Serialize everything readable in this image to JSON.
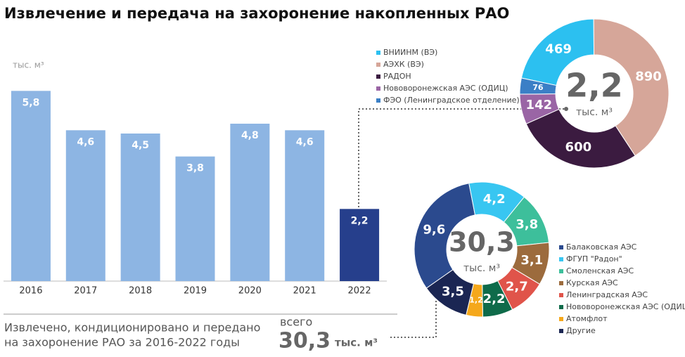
{
  "title": "Извлечение и передача на захоронение накопленных РАО",
  "chart_data": [
    {
      "type": "bar",
      "y_unit": "тыс. м³",
      "categories": [
        "2016",
        "2017",
        "2018",
        "2019",
        "2020",
        "2021",
        "2022"
      ],
      "values": [
        5.8,
        4.6,
        4.5,
        3.8,
        4.8,
        4.6,
        2.2
      ],
      "value_labels": [
        "5,8",
        "4,6",
        "4,5",
        "3,8",
        "4,8",
        "4,6",
        "2,2"
      ],
      "colors": [
        "#8db5e3",
        "#8db5e3",
        "#8db5e3",
        "#8db5e3",
        "#8db5e3",
        "#8db5e3",
        "#263f8c"
      ],
      "ylim": [
        0,
        6
      ]
    },
    {
      "type": "pie",
      "total_label": "2,2",
      "unit": "тыс. м³",
      "categories": [
        "ВНИИНМ (ВЭ)",
        "АЭХК (ВЭ)",
        "РАДОН",
        "Нововоронежская АЭС (ОДИЦ)",
        "ФЭО (Ленинградское отделение)"
      ],
      "values": [
        469,
        890,
        600,
        142,
        76
      ],
      "colors": [
        "#2cc0f0",
        "#d6a699",
        "#3b1b40",
        "#9a65a5",
        "#3b7fc6"
      ]
    },
    {
      "type": "pie",
      "total_label": "30,3",
      "unit": "тыс. м³",
      "categories": [
        "Балаковская АЭС",
        "ФГУП \"Радон\"",
        "Смоленская АЭС",
        "Курская АЭС",
        "Ленинградская АЭС",
        "Нововоронежская АЭС (ОДИЦ)",
        "Атомфлот",
        "Другие"
      ],
      "values": [
        9.6,
        4.2,
        3.8,
        3.1,
        2.7,
        2.2,
        1.2,
        3.5
      ],
      "value_labels": [
        "9,6",
        "4,2",
        "3,8",
        "3,1",
        "2,7",
        "2,2",
        "1,2",
        "3,5"
      ],
      "colors": [
        "#2b4a8e",
        "#38c6f1",
        "#3dbf9b",
        "#9c6b3d",
        "#e0544a",
        "#0f6b4a",
        "#f5a81b",
        "#1b2653"
      ]
    }
  ],
  "summary": {
    "text_lines": [
      "Извлечено, кондиционировано и передано",
      "на захоронение РАО за 2016-2022 годы"
    ],
    "prefix": "всего",
    "total": "30,3",
    "unit": "тыс. м³"
  }
}
